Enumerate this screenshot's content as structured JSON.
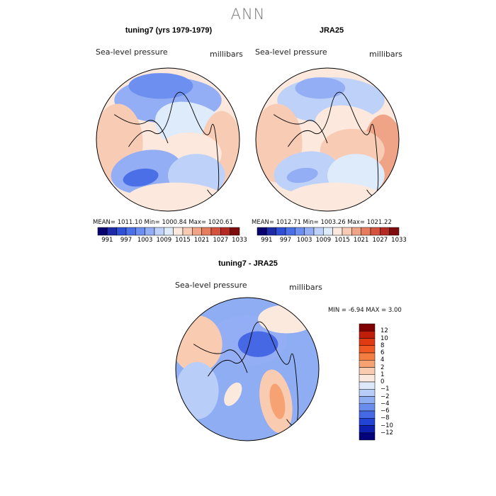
{
  "page": {
    "title": "ANN"
  },
  "panels": [
    {
      "title": "tuning7 (yrs 1979-1979)",
      "variable": "Sea-level pressure",
      "units": "millibars",
      "stats": "MEAN= 1011.10   Min= 1000.84   Max= 1020.61",
      "mean": 1011.1,
      "min": 1000.84,
      "max": 1020.61
    },
    {
      "title": "JRA25",
      "variable": "Sea-level pressure",
      "units": "millibars",
      "stats": "MEAN= 1012.71   Min= 1003.26   Max= 1021.22",
      "mean": 1012.71,
      "min": 1003.26,
      "max": 1021.22
    },
    {
      "title": "tuning7 - JRA25",
      "variable": "Sea-level pressure",
      "units": "millibars",
      "stats": "MIN =   -6.94  MAX =     3.00",
      "min": -6.94,
      "max": 3.0
    }
  ],
  "colorbar_abs": {
    "colors": [
      "#08006e",
      "#1d2ba8",
      "#2f4fd4",
      "#4b6fe6",
      "#6d8ff0",
      "#93aef5",
      "#bdd1f9",
      "#ddebfb",
      "#fce8dc",
      "#f8cbb5",
      "#f0a487",
      "#e67c5e",
      "#d3533e",
      "#b32a22",
      "#7f0c0c"
    ],
    "labels": [
      "991",
      "997",
      "1003",
      "1009",
      "1015",
      "1021",
      "1027",
      "1033"
    ]
  },
  "colorbar_diff": {
    "colors": [
      "#800000",
      "#c01d0a",
      "#e03a12",
      "#f05a22",
      "#f47e42",
      "#f6a273",
      "#f9cbb0",
      "#fbe9dd",
      "#dde9fb",
      "#b8cef8",
      "#8fadf2",
      "#6a8cec",
      "#4668e4",
      "#2342d6",
      "#0f1fb0",
      "#03027a"
    ],
    "labels": [
      "12",
      "10",
      "8",
      "6",
      "4",
      "2",
      "1",
      "0",
      "−1",
      "−2",
      "−4",
      "−6",
      "−8",
      "−10",
      "−12"
    ]
  }
}
